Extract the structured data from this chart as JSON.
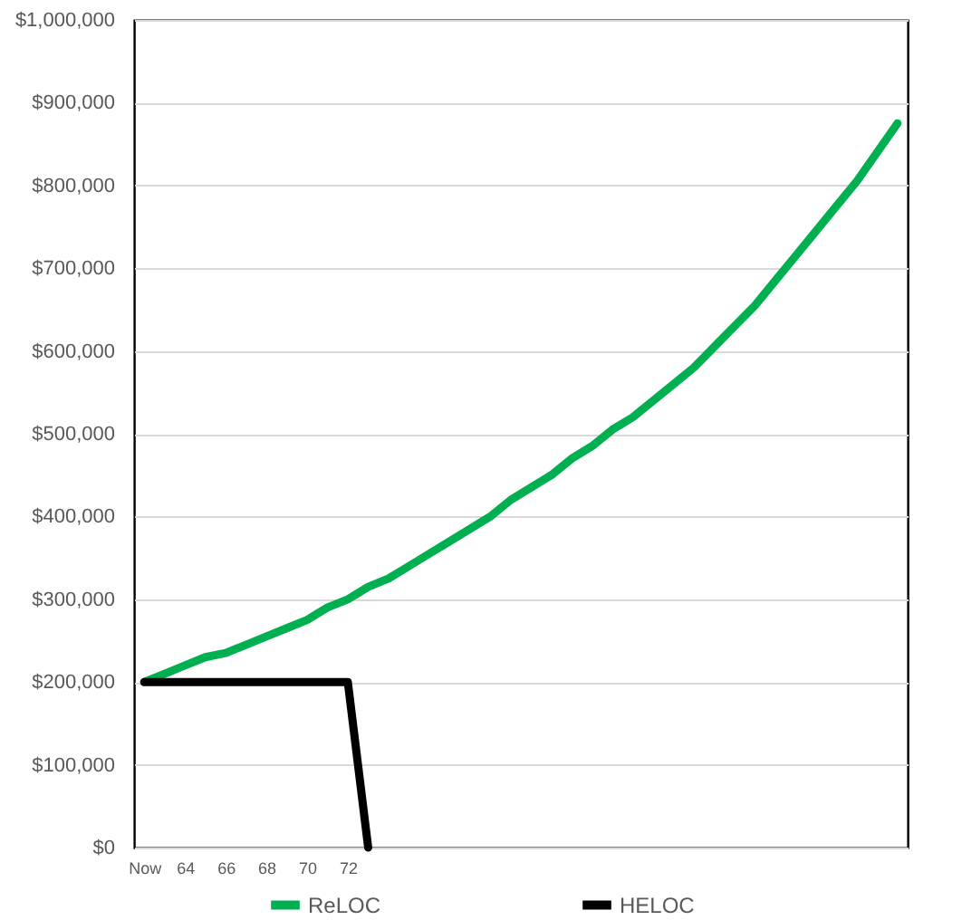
{
  "chart_data": {
    "type": "line",
    "categories": [
      "Now",
      null,
      "64",
      null,
      "66",
      null,
      "68",
      null,
      "70",
      null,
      "72",
      null,
      null,
      null,
      null,
      null,
      null,
      null,
      null,
      null,
      null,
      null,
      null,
      null,
      null,
      null,
      null,
      null,
      null,
      null,
      null,
      null,
      null,
      null,
      null,
      null,
      null,
      null
    ],
    "series": [
      {
        "name": "ReLOC",
        "color": "#00b050",
        "values": [
          200000,
          210000,
          220000,
          230000,
          235000,
          245000,
          255000,
          265000,
          275000,
          290000,
          300000,
          315000,
          325000,
          340000,
          355000,
          370000,
          385000,
          400000,
          420000,
          435000,
          450000,
          470000,
          485000,
          505000,
          520000,
          540000,
          560000,
          580000,
          605000,
          630000,
          655000,
          685000,
          715000,
          745000,
          775000,
          805000,
          840000,
          875000
        ]
      },
      {
        "name": "HELOC",
        "color": "#000000",
        "values": [
          200000,
          200000,
          200000,
          200000,
          200000,
          200000,
          200000,
          200000,
          200000,
          200000,
          200000,
          0,
          null,
          null,
          null,
          null,
          null,
          null,
          null,
          null,
          null,
          null,
          null,
          null,
          null,
          null,
          null,
          null,
          null,
          null,
          null,
          null,
          null,
          null,
          null,
          null,
          null,
          null
        ]
      }
    ],
    "ylim": [
      0,
      1000000
    ],
    "yticks": [
      {
        "value": 0,
        "label": "$0"
      },
      {
        "value": 100000,
        "label": "$100,000"
      },
      {
        "value": 200000,
        "label": "$200,000"
      },
      {
        "value": 300000,
        "label": "$300,000"
      },
      {
        "value": 400000,
        "label": "$400,000"
      },
      {
        "value": 500000,
        "label": "$500,000"
      },
      {
        "value": 600000,
        "label": "$600,000"
      },
      {
        "value": 700000,
        "label": "$700,000"
      },
      {
        "value": 800000,
        "label": "$800,000"
      },
      {
        "value": 900000,
        "label": "$900,000"
      },
      {
        "value": 1000000,
        "label": "$1,000,000"
      }
    ],
    "grid": "y",
    "legend": "bottom"
  }
}
